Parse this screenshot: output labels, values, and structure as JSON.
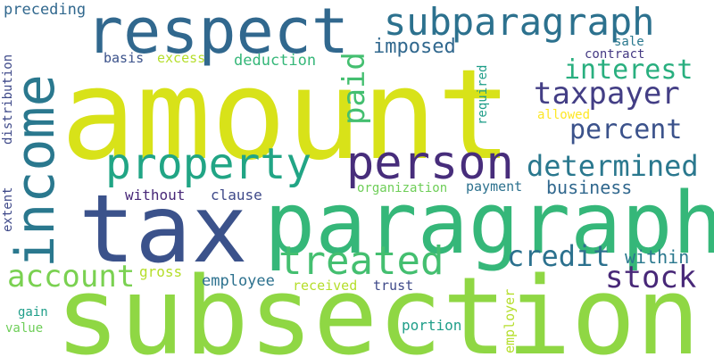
{
  "words": [
    {
      "text": "amount",
      "color": "#d8e219",
      "orientation": "horizontal"
    },
    {
      "text": "subsection",
      "color": "#8fd744",
      "orientation": "horizontal"
    },
    {
      "text": "tax",
      "color": "#3b528b",
      "orientation": "horizontal"
    },
    {
      "text": "paragraph",
      "color": "#35b779",
      "orientation": "horizontal"
    },
    {
      "text": "respect",
      "color": "#31688e",
      "orientation": "horizontal"
    },
    {
      "text": "income",
      "color": "#2a788e",
      "orientation": "vertical"
    },
    {
      "text": "property",
      "color": "#21a585",
      "orientation": "horizontal"
    },
    {
      "text": "person",
      "color": "#472d7b",
      "orientation": "horizontal"
    },
    {
      "text": "subparagraph",
      "color": "#2c718e",
      "orientation": "horizontal"
    },
    {
      "text": "treated",
      "color": "#44bf70",
      "orientation": "horizontal"
    },
    {
      "text": "account",
      "color": "#7ad151",
      "orientation": "horizontal"
    },
    {
      "text": "taxpayer",
      "color": "#433e85",
      "orientation": "horizontal"
    },
    {
      "text": "determined",
      "color": "#2a788e",
      "orientation": "horizontal"
    },
    {
      "text": "interest",
      "color": "#29af7f",
      "orientation": "horizontal"
    },
    {
      "text": "percent",
      "color": "#3b528b",
      "orientation": "horizontal"
    },
    {
      "text": "credit",
      "color": "#2c718e",
      "orientation": "horizontal"
    },
    {
      "text": "stock",
      "color": "#482878",
      "orientation": "horizontal"
    },
    {
      "text": "paid",
      "color": "#44bf70",
      "orientation": "vertical"
    },
    {
      "text": "imposed",
      "color": "#31688e",
      "orientation": "horizontal"
    },
    {
      "text": "business",
      "color": "#31688e",
      "orientation": "horizontal"
    },
    {
      "text": "within",
      "color": "#2a788e",
      "orientation": "horizontal"
    },
    {
      "text": "preceding",
      "color": "#31688e",
      "orientation": "horizontal"
    },
    {
      "text": "basis",
      "color": "#3b528b",
      "orientation": "horizontal"
    },
    {
      "text": "excess",
      "color": "#b5de2b",
      "orientation": "horizontal"
    },
    {
      "text": "deduction",
      "color": "#35b779",
      "orientation": "horizontal"
    },
    {
      "text": "sale",
      "color": "#2a788e",
      "orientation": "horizontal"
    },
    {
      "text": "contract",
      "color": "#443983",
      "orientation": "horizontal"
    },
    {
      "text": "allowed",
      "color": "#fde725",
      "orientation": "horizontal"
    },
    {
      "text": "required",
      "color": "#1f9e89",
      "orientation": "vertical"
    },
    {
      "text": "without",
      "color": "#482878",
      "orientation": "horizontal"
    },
    {
      "text": "clause",
      "color": "#3e4989",
      "orientation": "horizontal"
    },
    {
      "text": "organization",
      "color": "#6ece58",
      "orientation": "horizontal"
    },
    {
      "text": "payment",
      "color": "#2c718e",
      "orientation": "horizontal"
    },
    {
      "text": "distribution",
      "color": "#3e4989",
      "orientation": "vertical"
    },
    {
      "text": "extent",
      "color": "#3e4989",
      "orientation": "vertical"
    },
    {
      "text": "gross",
      "color": "#b5de2b",
      "orientation": "horizontal"
    },
    {
      "text": "employee",
      "color": "#2c718e",
      "orientation": "horizontal"
    },
    {
      "text": "received",
      "color": "#b5de2b",
      "orientation": "horizontal"
    },
    {
      "text": "trust",
      "color": "#3e4989",
      "orientation": "horizontal"
    },
    {
      "text": "employer",
      "color": "#b5de2b",
      "orientation": "vertical"
    },
    {
      "text": "gain",
      "color": "#1f9e89",
      "orientation": "horizontal"
    },
    {
      "text": "value",
      "color": "#6ece58",
      "orientation": "horizontal"
    },
    {
      "text": "portion",
      "color": "#1f9e89",
      "orientation": "horizontal"
    }
  ]
}
